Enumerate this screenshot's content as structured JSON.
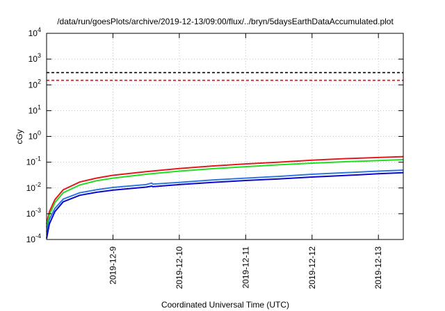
{
  "chart_data": {
    "type": "line",
    "title": "/data/run/goesPlots/archive/2019-12-13/09:00/flux/../bryn/5daysEarthDataAccumulated.plot",
    "xlabel": "Coordinated Universal Time (UTC)",
    "ylabel": "cGy",
    "y_scale": "log",
    "ylim": [
      0.0001,
      10000
    ],
    "xlim": [
      "2019-12-8",
      "2019-12-13 09:00"
    ],
    "x_ticks": [
      "2019-12-9",
      "2019-12-10",
      "2019-12-11",
      "2019-12-12",
      "2019-12-13"
    ],
    "y_ticks": [
      {
        "base": "10",
        "exp": "-4",
        "value": 0.0001
      },
      {
        "base": "10",
        "exp": "-3",
        "value": 0.001
      },
      {
        "base": "10",
        "exp": "-2",
        "value": 0.01
      },
      {
        "base": "10",
        "exp": "-1",
        "value": 0.1
      },
      {
        "base": "10",
        "exp": "0",
        "value": 1
      },
      {
        "base": "10",
        "exp": "1",
        "value": 10
      },
      {
        "base": "10",
        "exp": "2",
        "value": 100
      },
      {
        "base": "10",
        "exp": "3",
        "value": 1000
      },
      {
        "base": "10",
        "exp": "4",
        "value": 10000
      }
    ],
    "grid": true,
    "reference_lines": [
      {
        "value": 300,
        "color": "#000000",
        "style": "dashed"
      },
      {
        "value": 150,
        "color": "#ff0000",
        "style": "dashed"
      }
    ],
    "series": [
      {
        "color": "#e31a1c",
        "points": [
          [
            "2019-12-8 00:00",
            0.0004
          ],
          [
            "2019-12-8 01:00",
            0.0012
          ],
          [
            "2019-12-8 03:00",
            0.0035
          ],
          [
            "2019-12-8 06:00",
            0.0085
          ],
          [
            "2019-12-8 12:00",
            0.017
          ],
          [
            "2019-12-8 18:00",
            0.024
          ],
          [
            "2019-12-9 00:00",
            0.031
          ],
          [
            "2019-12-9 12:00",
            0.043
          ],
          [
            "2019-12-10 00:00",
            0.057
          ],
          [
            "2019-12-10 12:00",
            0.071
          ],
          [
            "2019-12-11 00:00",
            0.086
          ],
          [
            "2019-12-11 12:00",
            0.1
          ],
          [
            "2019-12-12 00:00",
            0.12
          ],
          [
            "2019-12-12 12:00",
            0.137
          ],
          [
            "2019-12-13 00:00",
            0.152
          ],
          [
            "2019-12-13 09:00",
            0.165
          ]
        ]
      },
      {
        "color": "#22dd22",
        "points": [
          [
            "2019-12-8 00:00",
            0.0003
          ],
          [
            "2019-12-8 01:00",
            0.0009
          ],
          [
            "2019-12-8 03:00",
            0.0027
          ],
          [
            "2019-12-8 06:00",
            0.0065
          ],
          [
            "2019-12-8 12:00",
            0.013
          ],
          [
            "2019-12-8 18:00",
            0.019
          ],
          [
            "2019-12-9 00:00",
            0.024
          ],
          [
            "2019-12-9 12:00",
            0.034
          ],
          [
            "2019-12-10 00:00",
            0.045
          ],
          [
            "2019-12-10 12:00",
            0.056
          ],
          [
            "2019-12-11 00:00",
            0.067
          ],
          [
            "2019-12-11 12:00",
            0.079
          ],
          [
            "2019-12-12 00:00",
            0.092
          ],
          [
            "2019-12-12 12:00",
            0.104
          ],
          [
            "2019-12-13 00:00",
            0.116
          ],
          [
            "2019-12-13 09:00",
            0.125
          ]
        ]
      },
      {
        "color": "#3377dd",
        "points": [
          [
            "2019-12-8 00:00",
            0.0002
          ],
          [
            "2019-12-8 01:00",
            0.0006
          ],
          [
            "2019-12-8 03:00",
            0.0016
          ],
          [
            "2019-12-8 06:00",
            0.0037
          ],
          [
            "2019-12-8 12:00",
            0.0065
          ],
          [
            "2019-12-8 18:00",
            0.0085
          ],
          [
            "2019-12-9 00:00",
            0.0105
          ],
          [
            "2019-12-9 12:00",
            0.0135
          ],
          [
            "2019-12-9 14:00",
            0.0155
          ],
          [
            "2019-12-9 14:30",
            0.014
          ],
          [
            "2019-12-10 00:00",
            0.0165
          ],
          [
            "2019-12-10 12:00",
            0.0205
          ],
          [
            "2019-12-11 00:00",
            0.024
          ],
          [
            "2019-12-11 12:00",
            0.028
          ],
          [
            "2019-12-12 00:00",
            0.034
          ],
          [
            "2019-12-12 12:00",
            0.039
          ],
          [
            "2019-12-13 00:00",
            0.045
          ],
          [
            "2019-12-13 09:00",
            0.049
          ]
        ]
      },
      {
        "color": "#0a0acc",
        "points": [
          [
            "2019-12-8 00:00",
            0.00011
          ],
          [
            "2019-12-8 01:00",
            0.0004
          ],
          [
            "2019-12-8 03:00",
            0.0012
          ],
          [
            "2019-12-8 06:00",
            0.0029
          ],
          [
            "2019-12-8 12:00",
            0.0052
          ],
          [
            "2019-12-8 18:00",
            0.0068
          ],
          [
            "2019-12-9 00:00",
            0.0082
          ],
          [
            "2019-12-9 12:00",
            0.0108
          ],
          [
            "2019-12-9 14:00",
            0.0118
          ],
          [
            "2019-12-9 14:30",
            0.0112
          ],
          [
            "2019-12-10 00:00",
            0.0135
          ],
          [
            "2019-12-10 12:00",
            0.0165
          ],
          [
            "2019-12-11 00:00",
            0.0195
          ],
          [
            "2019-12-11 12:00",
            0.0225
          ],
          [
            "2019-12-12 00:00",
            0.0265
          ],
          [
            "2019-12-12 12:00",
            0.0305
          ],
          [
            "2019-12-13 00:00",
            0.0355
          ],
          [
            "2019-12-13 09:00",
            0.039
          ]
        ]
      }
    ]
  }
}
